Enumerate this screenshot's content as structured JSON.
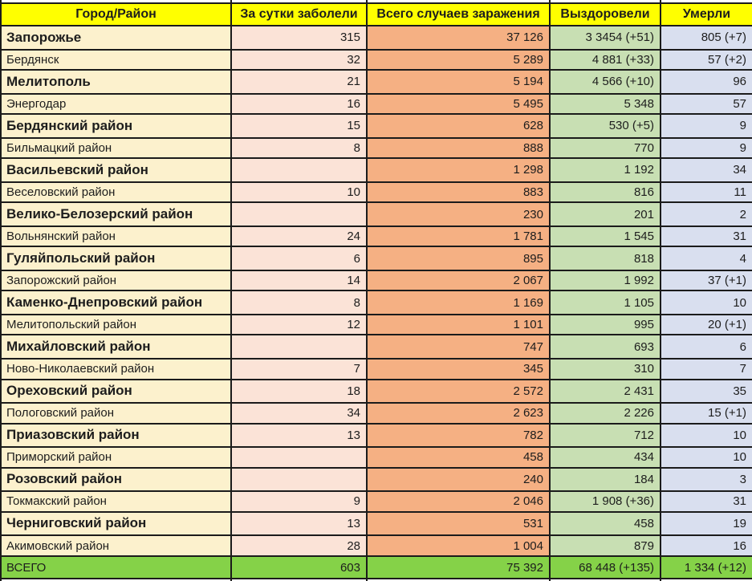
{
  "colors": {
    "header_bg": "#ffff00",
    "col1_bg": "#fcf1cd",
    "col2_bg": "#fbe3d7",
    "col3_bg": "#f5b083",
    "col4_bg": "#c8dfb3",
    "col5_bg": "#d9dfef",
    "total_bg": "#85d248",
    "border": "#1b1b1b",
    "text": "#1d1d1d"
  },
  "table": {
    "columns": [
      {
        "label": "Город/Район"
      },
      {
        "label": "За сутки заболели"
      },
      {
        "label": "Всего случаев заражения"
      },
      {
        "label": "Выздоровели"
      },
      {
        "label": "Умерли"
      }
    ],
    "rows": [
      {
        "name": "Запорожье",
        "daily": "315",
        "total": "37 126",
        "recovered": "3 3454 (+51)",
        "died": "805 (+7)",
        "bold": true
      },
      {
        "name": "Бердянск",
        "daily": "32",
        "total": "5 289",
        "recovered": "4 881 (+33)",
        "died": "57 (+2)",
        "bold": false
      },
      {
        "name": "Мелитополь",
        "daily": "21",
        "total": "5 194",
        "recovered": "4 566 (+10)",
        "died": "96",
        "bold": true
      },
      {
        "name": "Энергодар",
        "daily": "16",
        "total": "5 495",
        "recovered": "5 348",
        "died": "57",
        "bold": false
      },
      {
        "name": "Бердянский район",
        "daily": "15",
        "total": "628",
        "recovered": "530 (+5)",
        "died": "9",
        "bold": true
      },
      {
        "name": "Бильмацкий район",
        "daily": "8",
        "total": "888",
        "recovered": "770",
        "died": "9",
        "bold": false
      },
      {
        "name": "Васильевский район",
        "daily": "",
        "total": "1 298",
        "recovered": "1 192",
        "died": "34",
        "bold": true
      },
      {
        "name": "Веселовский район",
        "daily": "10",
        "total": "883",
        "recovered": "816",
        "died": "11",
        "bold": false
      },
      {
        "name": "Велико-Белозерский район",
        "daily": "",
        "total": "230",
        "recovered": "201",
        "died": "2",
        "bold": true
      },
      {
        "name": "Вольнянский район",
        "daily": "24",
        "total": "1 781",
        "recovered": "1 545",
        "died": "31",
        "bold": false
      },
      {
        "name": "Гуляйпольский район",
        "daily": "6",
        "total": "895",
        "recovered": "818",
        "died": "4",
        "bold": true
      },
      {
        "name": "Запорожский район",
        "daily": "14",
        "total": "2 067",
        "recovered": "1 992",
        "died": "37 (+1)",
        "bold": false
      },
      {
        "name": "Каменко-Днепровский район",
        "daily": "8",
        "total": "1 169",
        "recovered": "1 105",
        "died": "10",
        "bold": true
      },
      {
        "name": "Мелитопольский район",
        "daily": "12",
        "total": "1 101",
        "recovered": "995",
        "died": "20 (+1)",
        "bold": false
      },
      {
        "name": "Михайловский район",
        "daily": "",
        "total": "747",
        "recovered": "693",
        "died": "6",
        "bold": true
      },
      {
        "name": "Ново-Николаевский район",
        "daily": "7",
        "total": "345",
        "recovered": "310",
        "died": "7",
        "bold": false
      },
      {
        "name": "Ореховский район",
        "daily": "18",
        "total": "2 572",
        "recovered": "2 431",
        "died": "35",
        "bold": true
      },
      {
        "name": "Пологовский район",
        "daily": "34",
        "total": "2 623",
        "recovered": "2 226",
        "died": "15 (+1)",
        "bold": false
      },
      {
        "name": "Приазовский район",
        "daily": "13",
        "total": "782",
        "recovered": "712",
        "died": "10",
        "bold": true
      },
      {
        "name": "Приморский район",
        "daily": "",
        "total": "458",
        "recovered": "434",
        "died": "10",
        "bold": false
      },
      {
        "name": "Розовский район",
        "daily": "",
        "total": "240",
        "recovered": "184",
        "died": "3",
        "bold": true
      },
      {
        "name": "Токмакский район",
        "daily": "9",
        "total": "2 046",
        "recovered": "1 908 (+36)",
        "died": "31",
        "bold": false
      },
      {
        "name": "Черниговский район",
        "daily": "13",
        "total": "531",
        "recovered": "458",
        "died": "19",
        "bold": true
      },
      {
        "name": "Акимовский район",
        "daily": "28",
        "total": "1 004",
        "recovered": "879",
        "died": "16",
        "bold": false
      }
    ],
    "total_row": {
      "name": "ВСЕГО",
      "daily": "603",
      "total": "75 392",
      "recovered": "68 448 (+135)",
      "died": "1 334 (+12)"
    }
  }
}
